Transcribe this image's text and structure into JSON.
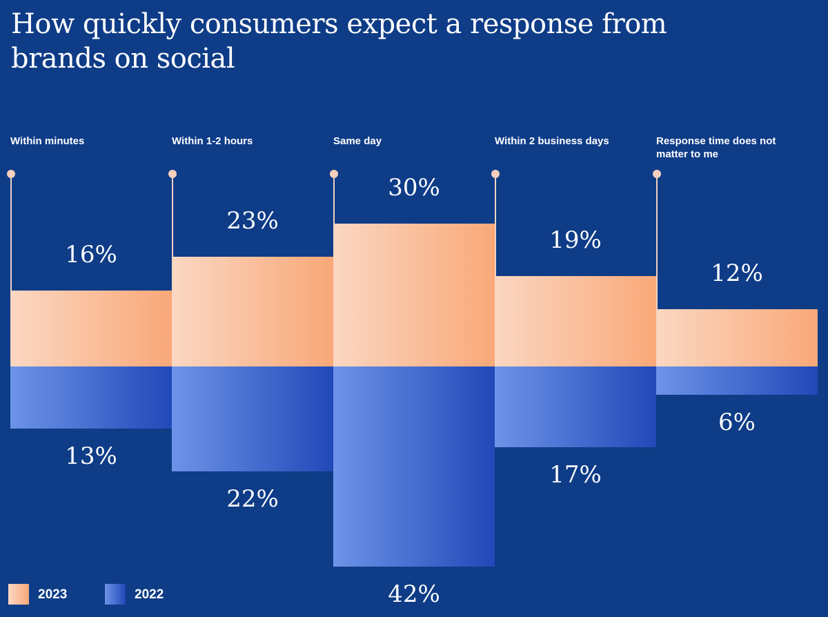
{
  "chart_data": {
    "type": "bar",
    "title": "How quickly consumers expect a response from brands on social",
    "categories": [
      "Within minutes",
      "Within 1-2 hours",
      "Same day",
      "Within 2 business days",
      "Response time does not matter to me"
    ],
    "series": [
      {
        "name": "2023",
        "values": [
          16,
          23,
          30,
          19,
          12
        ],
        "labels": [
          "16%",
          "23%",
          "30%",
          "19%",
          "12%"
        ],
        "color": "#f9a878"
      },
      {
        "name": "2022",
        "values": [
          13,
          22,
          42,
          17,
          6
        ],
        "labels": [
          "13%",
          "22%",
          "42%",
          "17%",
          "6%"
        ],
        "color": "#2f5bcc"
      }
    ],
    "legend_position": "bottom-left",
    "xlabel": "",
    "ylabel": ""
  }
}
